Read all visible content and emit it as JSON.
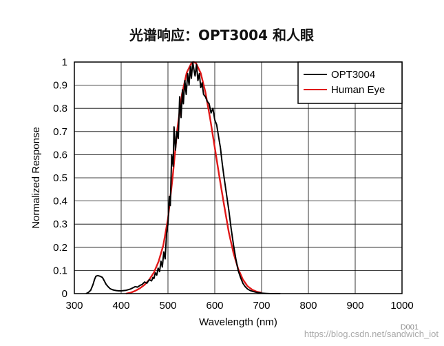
{
  "chart_data": {
    "type": "line",
    "title": "光谱响应：OPT3004 和人眼",
    "xlabel": "Wavelength (nm)",
    "ylabel": "Normalized Response",
    "xlim": [
      300,
      1000
    ],
    "ylim": [
      0,
      1
    ],
    "xticks": [
      300,
      400,
      500,
      600,
      700,
      800,
      900,
      1000
    ],
    "yticks": [
      0,
      0.1,
      0.2,
      0.3,
      0.4,
      0.5,
      0.6,
      0.7,
      0.8,
      0.9,
      1
    ],
    "grid": true,
    "legend_position": "top-right",
    "series": [
      {
        "name": "OPT3004",
        "color": "#000000",
        "x": [
          325,
          330,
          335,
          340,
          343,
          346,
          350,
          355,
          360,
          364,
          368,
          372,
          376,
          380,
          385,
          390,
          395,
          400,
          405,
          410,
          415,
          420,
          425,
          430,
          435,
          440,
          445,
          450,
          455,
          460,
          465,
          468,
          470,
          473,
          476,
          479,
          482,
          485,
          488,
          491,
          494,
          497,
          500,
          503,
          505,
          508,
          511,
          513,
          516,
          519,
          522,
          525,
          528,
          531,
          533,
          536,
          539,
          542,
          545,
          548,
          550,
          553,
          556,
          558,
          561,
          564,
          567,
          570,
          573,
          576,
          580,
          584,
          588,
          592,
          596,
          600,
          604,
          608,
          612,
          616,
          620,
          625,
          630,
          635,
          640,
          645,
          650,
          655,
          660,
          665,
          670,
          675,
          680,
          690,
          700,
          710,
          720,
          730,
          740
        ],
        "y": [
          0.0,
          0.005,
          0.015,
          0.04,
          0.06,
          0.075,
          0.078,
          0.075,
          0.07,
          0.055,
          0.04,
          0.03,
          0.022,
          0.018,
          0.015,
          0.013,
          0.012,
          0.012,
          0.013,
          0.014,
          0.017,
          0.02,
          0.025,
          0.03,
          0.028,
          0.035,
          0.04,
          0.05,
          0.045,
          0.06,
          0.055,
          0.07,
          0.065,
          0.09,
          0.08,
          0.11,
          0.095,
          0.14,
          0.115,
          0.18,
          0.15,
          0.26,
          0.3,
          0.42,
          0.38,
          0.6,
          0.55,
          0.72,
          0.62,
          0.7,
          0.67,
          0.85,
          0.76,
          0.88,
          0.82,
          0.92,
          0.86,
          0.95,
          0.9,
          0.98,
          0.93,
          1.0,
          0.96,
          0.94,
          0.99,
          0.92,
          0.95,
          0.89,
          0.91,
          0.86,
          0.85,
          0.83,
          0.82,
          0.78,
          0.8,
          0.75,
          0.73,
          0.68,
          0.63,
          0.56,
          0.5,
          0.43,
          0.36,
          0.28,
          0.21,
          0.15,
          0.1,
          0.07,
          0.045,
          0.03,
          0.02,
          0.014,
          0.01,
          0.005,
          0.002,
          0.001,
          0.0,
          0.0,
          0.0
        ]
      },
      {
        "name": "Human Eye",
        "color": "#e01818",
        "x": [
          410,
          420,
          430,
          440,
          450,
          460,
          470,
          480,
          490,
          500,
          510,
          520,
          530,
          540,
          550,
          555,
          560,
          570,
          580,
          590,
          600,
          610,
          620,
          630,
          640,
          650,
          660,
          670,
          680,
          690,
          700
        ],
        "y": [
          0.0,
          0.004,
          0.012,
          0.023,
          0.038,
          0.06,
          0.091,
          0.139,
          0.208,
          0.323,
          0.503,
          0.71,
          0.862,
          0.954,
          0.995,
          1.0,
          0.995,
          0.952,
          0.87,
          0.757,
          0.631,
          0.503,
          0.381,
          0.265,
          0.175,
          0.107,
          0.061,
          0.032,
          0.017,
          0.008,
          0.004
        ]
      }
    ]
  },
  "figure_tag": "D001",
  "watermark": "https://blog.csdn.net/sandwich_iot"
}
